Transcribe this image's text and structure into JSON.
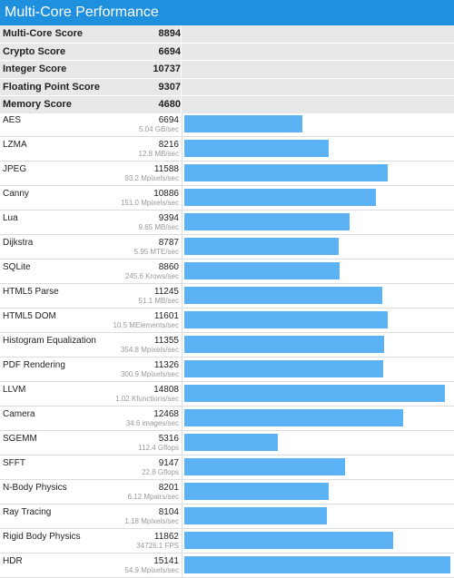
{
  "title": "Multi-Core Performance",
  "colors": {
    "header": "#1f90dd",
    "bar": "#5bb3f5"
  },
  "summary": [
    {
      "label": "Multi-Core Score",
      "value": "8894"
    },
    {
      "label": "Crypto Score",
      "value": "6694"
    },
    {
      "label": "Integer Score",
      "value": "10737"
    },
    {
      "label": "Floating Point Score",
      "value": "9307"
    },
    {
      "label": "Memory Score",
      "value": "4680"
    }
  ],
  "benchmarks": [
    {
      "name": "AES",
      "score": 6694,
      "rate": "5.04 GB/sec"
    },
    {
      "name": "LZMA",
      "score": 8216,
      "rate": "12.8 MB/sec"
    },
    {
      "name": "JPEG",
      "score": 11588,
      "rate": "93.2 Mpixels/sec"
    },
    {
      "name": "Canny",
      "score": 10886,
      "rate": "151.0 Mpixels/sec"
    },
    {
      "name": "Lua",
      "score": 9394,
      "rate": "9.65 MB/sec"
    },
    {
      "name": "Dijkstra",
      "score": 8787,
      "rate": "5.95 MTE/sec"
    },
    {
      "name": "SQLite",
      "score": 8860,
      "rate": "245.6 Krows/sec"
    },
    {
      "name": "HTML5 Parse",
      "score": 11245,
      "rate": "51.1 MB/sec"
    },
    {
      "name": "HTML5 DOM",
      "score": 11601,
      "rate": "10.5 MElements/sec"
    },
    {
      "name": "Histogram Equalization",
      "score": 11355,
      "rate": "354.8 Mpixels/sec"
    },
    {
      "name": "PDF Rendering",
      "score": 11326,
      "rate": "300.9 Mpixels/sec"
    },
    {
      "name": "LLVM",
      "score": 14808,
      "rate": "1.02 Kfunctions/sec"
    },
    {
      "name": "Camera",
      "score": 12468,
      "rate": "34.6 images/sec"
    },
    {
      "name": "SGEMM",
      "score": 5316,
      "rate": "112.4 Gflops"
    },
    {
      "name": "SFFT",
      "score": 9147,
      "rate": "22.8 Gflops"
    },
    {
      "name": "N-Body Physics",
      "score": 8201,
      "rate": "6.12 Mpairs/sec"
    },
    {
      "name": "Ray Tracing",
      "score": 8104,
      "rate": "1.18 Mpixels/sec"
    },
    {
      "name": "Rigid Body Physics",
      "score": 11862,
      "rate": "34726.1 FPS"
    },
    {
      "name": "HDR",
      "score": 15141,
      "rate": "54.9 Mpixels/sec"
    }
  ]
}
